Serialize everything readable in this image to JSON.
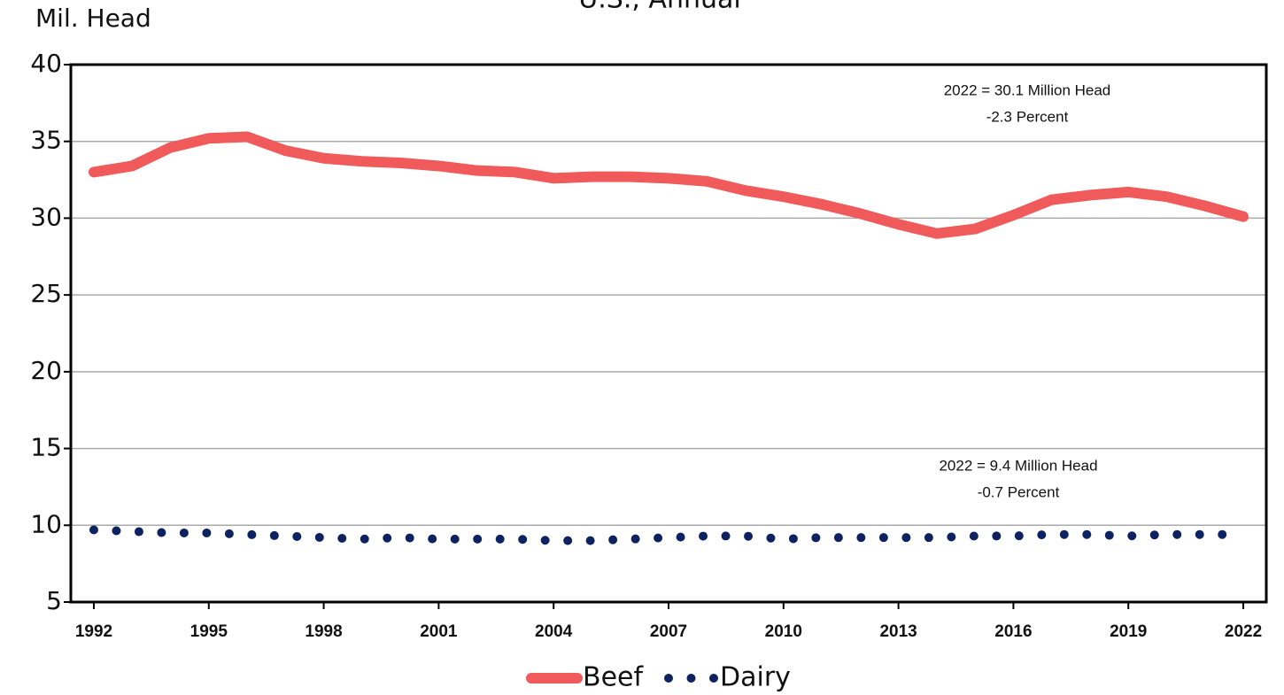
{
  "chart_data": {
    "type": "line",
    "title": "U.S., Annual",
    "y_label": "Mil. Head",
    "x": [
      1992,
      1993,
      1994,
      1995,
      1996,
      1997,
      1998,
      1999,
      2000,
      2001,
      2002,
      2003,
      2004,
      2005,
      2006,
      2007,
      2008,
      2009,
      2010,
      2011,
      2012,
      2013,
      2014,
      2015,
      2016,
      2017,
      2018,
      2019,
      2020,
      2021,
      2022
    ],
    "series": [
      {
        "name": "Beef",
        "color": "#f05a5a",
        "style": "solid",
        "values": [
          33.0,
          33.4,
          34.6,
          35.2,
          35.3,
          34.4,
          33.9,
          33.7,
          33.6,
          33.4,
          33.1,
          33.0,
          32.6,
          32.7,
          32.7,
          32.6,
          32.4,
          31.8,
          31.4,
          30.9,
          30.3,
          29.6,
          29.0,
          29.3,
          30.2,
          31.2,
          31.5,
          31.7,
          31.4,
          30.8,
          30.1
        ]
      },
      {
        "name": "Dairy",
        "color": "#0d2260",
        "style": "dotted",
        "values": [
          9.7,
          9.6,
          9.5,
          9.5,
          9.4,
          9.3,
          9.2,
          9.1,
          9.2,
          9.1,
          9.1,
          9.1,
          9.0,
          9.0,
          9.1,
          9.2,
          9.3,
          9.3,
          9.1,
          9.2,
          9.2,
          9.2,
          9.2,
          9.3,
          9.3,
          9.4,
          9.4,
          9.3,
          9.4,
          9.4,
          9.4
        ]
      }
    ],
    "annotations": [
      {
        "lines": [
          "2022 = 30.1 Million Head",
          "-2.3 Percent"
        ]
      },
      {
        "lines": [
          "2022 = 9.4 Million Head",
          "-0.7 Percent"
        ]
      }
    ],
    "xlim": [
      1991.4,
      2022.6
    ],
    "xticks": [
      1992,
      1995,
      1998,
      2001,
      2004,
      2007,
      2010,
      2013,
      2016,
      2019,
      2022
    ],
    "ylim": [
      5,
      40
    ],
    "yticks": [
      5,
      10,
      15,
      20,
      25,
      30,
      35,
      40
    ],
    "grid": true,
    "legend": "bottom"
  }
}
